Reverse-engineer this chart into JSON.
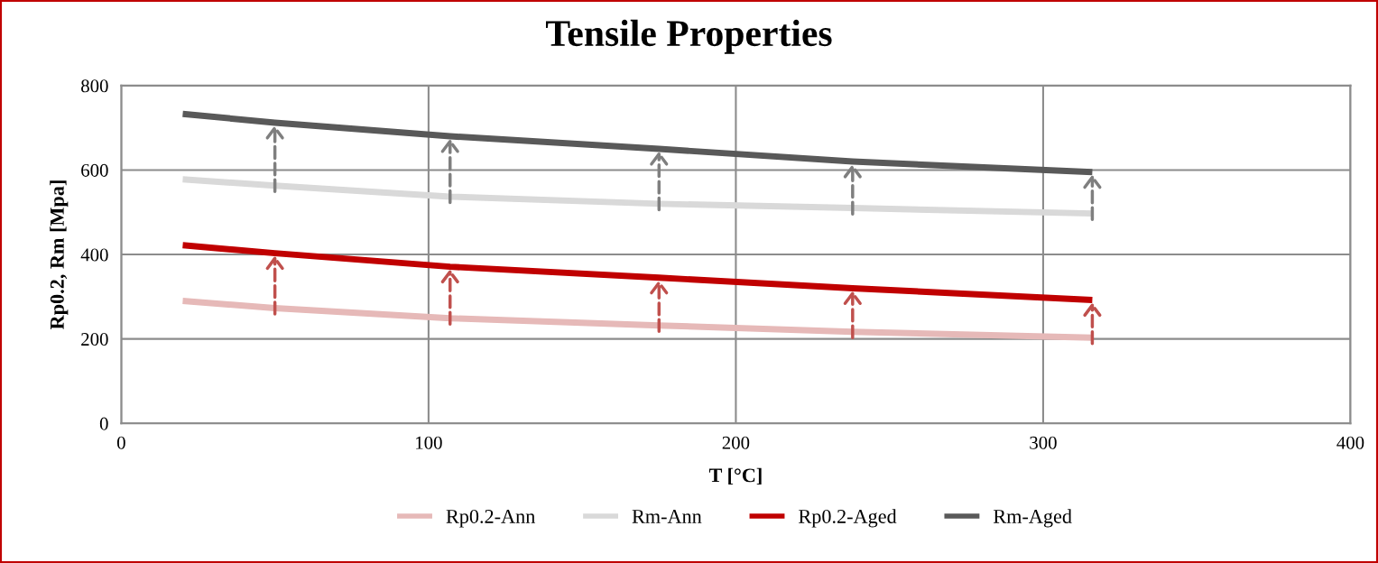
{
  "chart_data": {
    "type": "line",
    "title": "Tensile Properties",
    "xlabel": "T [°C]",
    "ylabel": "Rp0.2, Rm [Mpa]",
    "x": [
      20,
      50,
      107,
      175,
      238,
      316
    ],
    "series": [
      {
        "name": "Rp0.2-Ann",
        "color": "#e6b9b8",
        "values": [
          290,
          273,
          249,
          232,
          217,
          203
        ]
      },
      {
        "name": "Rm-Ann",
        "color": "#d9d9d9",
        "values": [
          578,
          563,
          537,
          520,
          510,
          497
        ]
      },
      {
        "name": "Rp0.2-Aged",
        "color": "#c00000",
        "values": [
          422,
          403,
          371,
          345,
          320,
          292
        ]
      },
      {
        "name": "Rm-Aged",
        "color": "#595959",
        "values": [
          733,
          712,
          680,
          650,
          620,
          595
        ]
      }
    ],
    "xlim": [
      0,
      400
    ],
    "xticks": [
      0,
      100,
      200,
      300,
      400
    ],
    "ylim": [
      0,
      800
    ],
    "yticks": [
      0,
      200,
      400,
      600,
      800
    ],
    "grid": true,
    "legend": "bottom",
    "marker": "none",
    "line_style": "solid"
  }
}
